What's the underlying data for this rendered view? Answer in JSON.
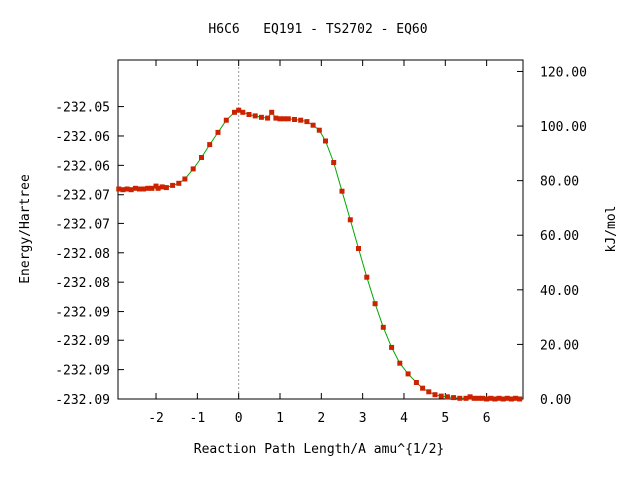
{
  "chart_data": {
    "type": "line",
    "title": "H6C6   EQ191 - TS2702 - EQ60",
    "xlabel": "Reaction Path Length/A amu^{1/2}",
    "ylabel": "Energy/Hartree",
    "y2label": "kJ/mol",
    "xlim": [
      -2.92,
      6.88
    ],
    "ylim": [
      -232.0905,
      -232.0432
    ],
    "y2lim": [
      0.0,
      124.2
    ],
    "x_ticks": [
      -2,
      -1,
      0,
      1,
      2,
      3,
      4,
      5,
      6
    ],
    "x_tick_labels": [
      "-2",
      "-1",
      "0",
      "1",
      "2",
      "3",
      "4",
      "5",
      "6"
    ],
    "y_ticks": [
      -232.0905,
      -232.0864,
      -232.0823,
      -232.0783,
      -232.0742,
      -232.0701,
      -232.066,
      -232.062,
      -232.0579,
      -232.0538,
      -232.0497
    ],
    "y_tick_labels": [
      "-232.09",
      "-232.09",
      "-232.09",
      "-232.09",
      "-232.08",
      "-232.08",
      "-232.07",
      "-232.07",
      "-232.06",
      "-232.06",
      "-232.05"
    ],
    "y2_ticks": [
      0,
      20,
      40,
      60,
      80,
      100,
      120
    ],
    "y2_tick_labels": [
      "0.00",
      "20.00",
      "40.00",
      "60.00",
      "80.00",
      "100.00",
      "120.00"
    ],
    "ts_marker_x": 0.0,
    "line_color": "#00aa00",
    "marker_color": "#cc2200",
    "ts_line_color": "#999999",
    "series": [
      {
        "x": [
          -2.9,
          -2.8,
          -2.7,
          -2.6,
          -2.5,
          -2.4,
          -2.3,
          -2.2,
          -2.1,
          -2.0,
          -1.95,
          -1.85,
          -1.75,
          -1.6,
          -1.45,
          -1.3,
          -1.1,
          -0.9,
          -0.7,
          -0.5,
          -0.3,
          -0.1,
          0.0,
          0.1,
          0.25,
          0.4,
          0.55,
          0.7,
          0.8,
          0.9,
          1.0,
          1.1,
          1.2,
          1.35,
          1.5,
          1.65,
          1.8,
          1.95,
          2.1,
          2.3,
          2.5,
          2.7,
          2.9,
          3.1,
          3.3,
          3.5,
          3.7,
          3.9,
          4.1,
          4.3,
          4.45,
          4.6,
          4.75,
          4.9,
          5.05,
          5.2,
          5.35,
          5.5,
          5.6,
          5.7,
          5.8,
          5.9,
          6.0,
          6.1,
          6.2,
          6.3,
          6.4,
          6.5,
          6.6,
          6.7,
          6.8
        ],
        "y": [
          -232.0612,
          -232.0613,
          -232.0612,
          -232.0613,
          -232.0611,
          -232.0612,
          -232.0612,
          -232.0611,
          -232.0611,
          -232.0608,
          -232.0611,
          -232.0609,
          -232.061,
          -232.0607,
          -232.0604,
          -232.0598,
          -232.0584,
          -232.0568,
          -232.055,
          -232.0533,
          -232.0516,
          -232.0505,
          -232.0502,
          -232.0505,
          -232.0508,
          -232.051,
          -232.0512,
          -232.0513,
          -232.0505,
          -232.0513,
          -232.0514,
          -232.0514,
          -232.0514,
          -232.0515,
          -232.0516,
          -232.0518,
          -232.0523,
          -232.053,
          -232.0545,
          -232.0575,
          -232.0615,
          -232.0655,
          -232.0695,
          -232.0735,
          -232.0772,
          -232.0805,
          -232.0833,
          -232.0855,
          -232.087,
          -232.0882,
          -232.089,
          -232.0895,
          -232.0899,
          -232.0901,
          -232.0902,
          -232.0903,
          -232.0904,
          -232.0904,
          -232.0902,
          -232.0904,
          -232.0904,
          -232.0904,
          -232.0905,
          -232.0904,
          -232.0905,
          -232.0904,
          -232.0905,
          -232.0904,
          -232.0905,
          -232.0904,
          -232.0905
        ]
      }
    ]
  }
}
